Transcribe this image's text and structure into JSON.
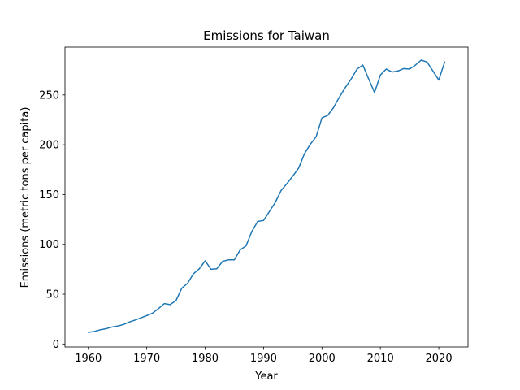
{
  "chart_data": {
    "type": "line",
    "title": "Emissions for Taiwan",
    "xlabel": "Year",
    "ylabel": "Emissions (metric tons per capita)",
    "xlim": [
      1956,
      2025
    ],
    "ylim": [
      -3,
      298
    ],
    "x_ticks": [
      1960,
      1970,
      1980,
      1990,
      2000,
      2010,
      2020
    ],
    "y_ticks": [
      0,
      50,
      100,
      150,
      200,
      250
    ],
    "grid": false,
    "legend": "none",
    "series": [
      {
        "color": "#1f77b4",
        "x": [
          1960,
          1961,
          1962,
          1963,
          1964,
          1965,
          1966,
          1967,
          1968,
          1969,
          1970,
          1971,
          1972,
          1973,
          1974,
          1975,
          1976,
          1977,
          1978,
          1979,
          1980,
          1981,
          1982,
          1983,
          1984,
          1985,
          1986,
          1987,
          1988,
          1989,
          1990,
          1991,
          1992,
          1993,
          1994,
          1995,
          1996,
          1997,
          1998,
          1999,
          2000,
          2001,
          2002,
          2003,
          2004,
          2005,
          2006,
          2007,
          2008,
          2009,
          2010,
          2011,
          2012,
          2013,
          2014,
          2015,
          2016,
          2017,
          2018,
          2019,
          2020,
          2021
        ],
        "y": [
          11.8,
          12.5,
          14.2,
          15.3,
          17.0,
          18.0,
          19.5,
          22.0,
          24.0,
          26.2,
          28.5,
          31.0,
          35.5,
          40.5,
          39.5,
          43.5,
          56.0,
          61.0,
          70.5,
          75.5,
          83.5,
          75.0,
          75.5,
          83.0,
          84.5,
          84.5,
          94.5,
          98.5,
          113.0,
          123.0,
          124.0,
          133.0,
          142.0,
          154.0,
          161.0,
          168.5,
          176.5,
          191.0,
          200.5,
          208.0,
          227.0,
          229.5,
          237.5,
          248.0,
          257.5,
          266.0,
          276.0,
          280.0,
          266.0,
          252.5,
          270.0,
          276.0,
          273.0,
          274.0,
          276.5,
          276.0,
          280.0,
          285.0,
          283.0,
          274.0,
          265.0,
          283.0
        ]
      }
    ]
  }
}
